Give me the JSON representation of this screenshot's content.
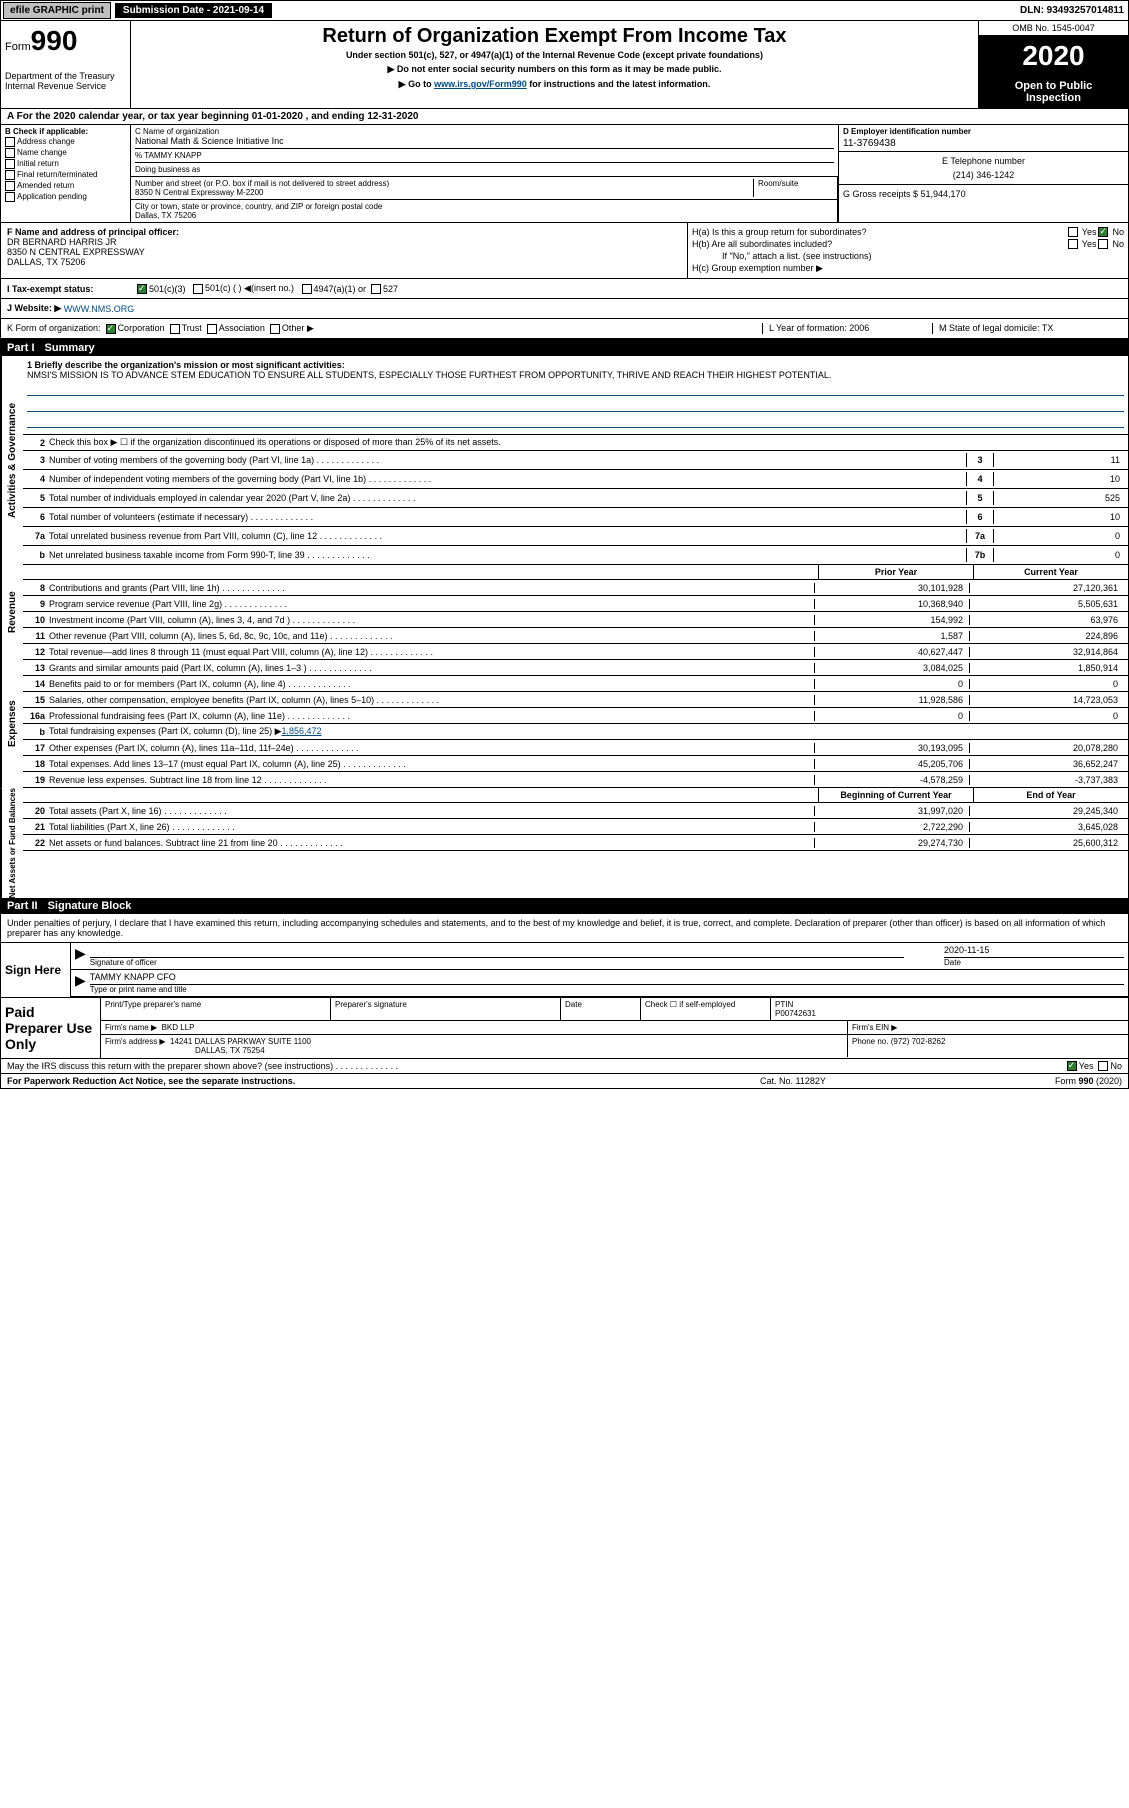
{
  "topbar": {
    "efile": "efile GRAPHIC print",
    "subdate_label": "Submission Date - 2021-09-14",
    "dln": "DLN: 93493257014811"
  },
  "header": {
    "form_prefix": "Form",
    "form_num": "990",
    "title": "Return of Organization Exempt From Income Tax",
    "sub1": "Under section 501(c), 527, or 4947(a)(1) of the Internal Revenue Code (except private foundations)",
    "sub2": "▶ Do not enter social security numbers on this form as it may be made public.",
    "sub3_pre": "▶ Go to ",
    "sub3_link": "www.irs.gov/Form990",
    "sub3_post": " for instructions and the latest information.",
    "dept1": "Department of the Treasury",
    "dept2": "Internal Revenue Service",
    "omb": "OMB No. 1545-0047",
    "year": "2020",
    "open1": "Open to Public",
    "open2": "Inspection"
  },
  "rowA": "A For the 2020 calendar year, or tax year beginning 01-01-2020   , and ending 12-31-2020",
  "colB": {
    "title": "B Check if applicable:",
    "items": [
      "Address change",
      "Name change",
      "Initial return",
      "Final return/terminated",
      "Amended return",
      "Application pending"
    ]
  },
  "colC": {
    "name_label": "C Name of organization",
    "name": "National Math & Science Initiative Inc",
    "care_of": "% TAMMY KNAPP",
    "dba_label": "Doing business as",
    "dba": "",
    "street_label": "Number and street (or P.O. box if mail is not delivered to street address)",
    "room_label": "Room/suite",
    "street": "8350 N Central Expressway M-2200",
    "city_label": "City or town, state or province, country, and ZIP or foreign postal code",
    "city": "Dallas, TX  75206"
  },
  "colD": {
    "ein_label": "D Employer identification number",
    "ein": "11-3769438",
    "phone_label": "E Telephone number",
    "phone": "(214) 346-1242",
    "gross_label": "G Gross receipts $ 51,944,170"
  },
  "colF": {
    "label": "F  Name and address of principal officer:",
    "name": "DR BERNARD HARRIS JR",
    "addr1": "8350 N CENTRAL EXPRESSWAY",
    "addr2": "DALLAS, TX  75206"
  },
  "colH": {
    "ha": "H(a)  Is this a group return for subordinates?",
    "hb": "H(b)  Are all subordinates included?",
    "hb_note": "If \"No,\" attach a list. (see instructions)",
    "hc": "H(c)  Group exemption number ▶"
  },
  "rowI": {
    "label": "I   Tax-exempt status:",
    "opts": [
      "501(c)(3)",
      "501(c) (  ) ◀(insert no.)",
      "4947(a)(1) or",
      "527"
    ]
  },
  "rowJ": {
    "label": "J   Website: ▶",
    "val": "WWW.NMS.ORG"
  },
  "rowK": {
    "k": "K Form of organization:",
    "k_opts": [
      "Corporation",
      "Trust",
      "Association",
      "Other ▶"
    ],
    "l_label": "L Year of formation: ",
    "l_val": "2006",
    "m_label": "M State of legal domicile: ",
    "m_val": "TX"
  },
  "part1": {
    "header_num": "Part I",
    "header_title": "Summary",
    "mission_label": "1 Briefly describe the organization's mission or most significant activities:",
    "mission": "NMSI'S MISSION IS TO ADVANCE STEM EDUCATION TO ENSURE ALL STUDENTS, ESPECIALLY THOSE FURTHEST FROM OPPORTUNITY, THRIVE AND REACH THEIR HIGHEST POTENTIAL.",
    "line2": "Check this box ▶ ☐  if the organization discontinued its operations or disposed of more than 25% of its net assets.",
    "vtab_ag": "Activities & Governance",
    "vtab_rev": "Revenue",
    "vtab_exp": "Expenses",
    "vtab_net": "Net Assets or Fund Balances",
    "prior_year": "Prior Year",
    "current_year": "Current Year",
    "begin_year": "Beginning of Current Year",
    "end_year": "End of Year",
    "lines_ag": [
      {
        "num": "3",
        "desc": "Number of voting members of the governing body (Part VI, line 1a)",
        "box": "3",
        "val": "11"
      },
      {
        "num": "4",
        "desc": "Number of independent voting members of the governing body (Part VI, line 1b)",
        "box": "4",
        "val": "10"
      },
      {
        "num": "5",
        "desc": "Total number of individuals employed in calendar year 2020 (Part V, line 2a)",
        "box": "5",
        "val": "525"
      },
      {
        "num": "6",
        "desc": "Total number of volunteers (estimate if necessary)",
        "box": "6",
        "val": "10"
      },
      {
        "num": "7a",
        "desc": "Total unrelated business revenue from Part VIII, column (C), line 12",
        "box": "7a",
        "val": "0"
      },
      {
        "num": "b",
        "desc": "Net unrelated business taxable income from Form 990-T, line 39",
        "box": "7b",
        "val": "0"
      }
    ],
    "lines_rev": [
      {
        "num": "8",
        "desc": "Contributions and grants (Part VIII, line 1h)",
        "v1": "30,101,928",
        "v2": "27,120,361"
      },
      {
        "num": "9",
        "desc": "Program service revenue (Part VIII, line 2g)",
        "v1": "10,368,940",
        "v2": "5,505,631"
      },
      {
        "num": "10",
        "desc": "Investment income (Part VIII, column (A), lines 3, 4, and 7d )",
        "v1": "154,992",
        "v2": "63,976"
      },
      {
        "num": "11",
        "desc": "Other revenue (Part VIII, column (A), lines 5, 6d, 8c, 9c, 10c, and 11e)",
        "v1": "1,587",
        "v2": "224,896"
      },
      {
        "num": "12",
        "desc": "Total revenue—add lines 8 through 11 (must equal Part VIII, column (A), line 12)",
        "v1": "40,627,447",
        "v2": "32,914,864"
      }
    ],
    "lines_exp": [
      {
        "num": "13",
        "desc": "Grants and similar amounts paid (Part IX, column (A), lines 1–3 )",
        "v1": "3,084,025",
        "v2": "1,850,914"
      },
      {
        "num": "14",
        "desc": "Benefits paid to or for members (Part IX, column (A), line 4)",
        "v1": "0",
        "v2": "0"
      },
      {
        "num": "15",
        "desc": "Salaries, other compensation, employee benefits (Part IX, column (A), lines 5–10)",
        "v1": "11,928,586",
        "v2": "14,723,053"
      },
      {
        "num": "16a",
        "desc": "Professional fundraising fees (Part IX, column (A), line 11e)",
        "v1": "0",
        "v2": "0"
      }
    ],
    "line16b": {
      "num": "b",
      "desc": "Total fundraising expenses (Part IX, column (D), line 25) ▶",
      "link": "1,856,472"
    },
    "lines_exp2": [
      {
        "num": "17",
        "desc": "Other expenses (Part IX, column (A), lines 11a–11d, 11f–24e)",
        "v1": "30,193,095",
        "v2": "20,078,280"
      },
      {
        "num": "18",
        "desc": "Total expenses. Add lines 13–17 (must equal Part IX, column (A), line 25)",
        "v1": "45,205,706",
        "v2": "36,652,247"
      },
      {
        "num": "19",
        "desc": "Revenue less expenses. Subtract line 18 from line 12",
        "v1": "-4,578,259",
        "v2": "-3,737,383"
      }
    ],
    "lines_net": [
      {
        "num": "20",
        "desc": "Total assets (Part X, line 16)",
        "v1": "31,997,020",
        "v2": "29,245,340"
      },
      {
        "num": "21",
        "desc": "Total liabilities (Part X, line 26)",
        "v1": "2,722,290",
        "v2": "3,645,028"
      },
      {
        "num": "22",
        "desc": "Net assets or fund balances. Subtract line 21 from line 20",
        "v1": "29,274,730",
        "v2": "25,600,312"
      }
    ]
  },
  "part2": {
    "header_num": "Part II",
    "header_title": "Signature Block",
    "intro": "Under penalties of perjury, I declare that I have examined this return, including accompanying schedules and statements, and to the best of my knowledge and belief, it is true, correct, and complete. Declaration of preparer (other than officer) is based on all information of which preparer has any knowledge.",
    "sign_here": "Sign Here",
    "sig_officer": "Signature of officer",
    "sig_date": "2020-11-15",
    "date_label": "Date",
    "officer_name": "TAMMY KNAPP  CFO",
    "type_label": "Type or print name and title",
    "paid": "Paid Preparer Use Only",
    "prep_name_h": "Print/Type preparer's name",
    "prep_sig_h": "Preparer's signature",
    "date_h": "Date",
    "check_self": "Check ☐ if self-employed",
    "ptin_h": "PTIN",
    "ptin": "P00742631",
    "firm_name_l": "Firm's name    ▶",
    "firm_name": "BKD LLP",
    "firm_ein_l": "Firm's EIN ▶",
    "firm_addr_l": "Firm's address ▶",
    "firm_addr1": "14241 DALLAS PARKWAY SUITE 1100",
    "firm_addr2": "DALLAS, TX  75254",
    "phone_l": "Phone no. ",
    "phone": "(972) 702-8262",
    "irs_discuss": "May the IRS discuss this return with the preparer shown above? (see instructions)",
    "yes": "Yes",
    "no": "No"
  },
  "footer": {
    "left": "For Paperwork Reduction Act Notice, see the separate instructions.",
    "mid": "Cat. No. 11282Y",
    "right": "Form 990 (2020)"
  }
}
